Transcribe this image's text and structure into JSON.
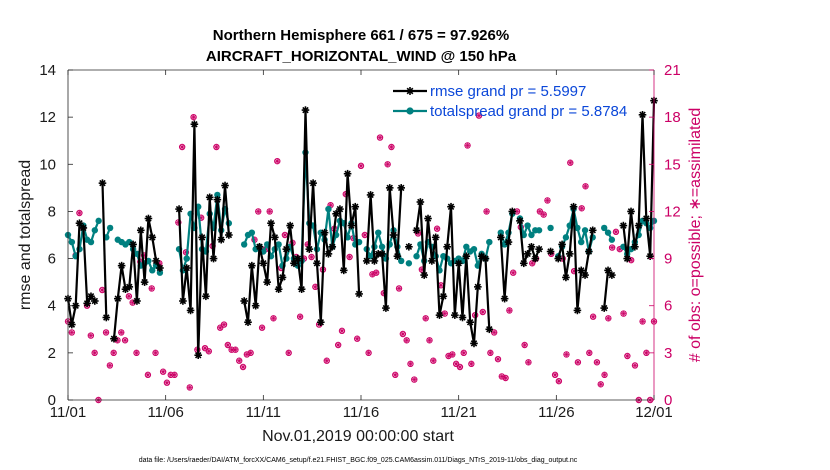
{
  "colors": {
    "rmse": "#000000",
    "spread": "#008080",
    "obs": "#cc0066",
    "legend_text": "#0b47d9"
  },
  "chart_data": {
    "type": "line",
    "title": "Northern Hemisphere 661 / 675 = 97.926%",
    "subtitle": "AIRCRAFT_HORIZONTAL_WIND @ 150 hPa",
    "xlabel": "Nov.01,2019 00:00:00 start",
    "ylabel": "rmse and totalspread",
    "ylabel_right": "# of obs: o=possible; ∗=assimilated",
    "footnote": "data file: /Users/raeder/DAI/ATM_forcXX/CAM6_setup/f.e21.FHIST_BGC.f09_025.CAM6assim.011/Diags_NTrS_2019-11/obs_diag_output.nc",
    "xlim": [
      0,
      30
    ],
    "ylim": [
      0,
      14
    ],
    "ylim_right": [
      0,
      21
    ],
    "x_ticks": [
      0,
      5,
      10,
      15,
      20,
      25,
      30
    ],
    "x_tick_labels": [
      "11/01",
      "11/06",
      "11/11",
      "11/16",
      "11/21",
      "11/26",
      "12/01"
    ],
    "y_ticks": [
      0,
      2,
      4,
      6,
      8,
      10,
      12,
      14
    ],
    "y_tick_labels": [
      "0",
      "2",
      "4",
      "6",
      "8",
      "10",
      "12",
      "14"
    ],
    "y_ticks_right": [
      0,
      3,
      6,
      9,
      12,
      15,
      18,
      21
    ],
    "y_tick_labels_right": [
      "0",
      "3",
      "6",
      "9",
      "12",
      "15",
      "18",
      "21"
    ],
    "legend_position": "top-right",
    "series": [
      {
        "name": "rmse grand pr = 5.5997",
        "values": [
          4.3,
          3.2,
          4.0,
          7.5,
          7.3,
          4.1,
          4.4,
          4.2,
          null,
          9.2,
          3.5,
          null,
          2.6,
          4.3,
          5.7,
          4.7,
          4.8,
          6.6,
          4.2,
          7.2,
          5.0,
          7.7,
          6.9,
          5.9,
          5.6,
          null,
          null,
          null,
          null,
          8.1,
          4.2,
          5.6,
          3.8,
          11.7,
          1.9,
          6.9,
          4.4,
          8.6,
          6.0,
          8.5,
          6.8,
          9.1,
          7.0,
          null,
          null,
          null,
          4.2,
          3.3,
          5.7,
          4.0,
          6.5,
          5.8,
          5.0,
          7.5,
          6.9,
          4.7,
          5.2,
          6.4,
          7.4,
          5.8,
          6.0,
          4.7,
          12.3,
          6.4,
          9.2,
          5.8,
          3.3,
          7.1,
          6.2,
          6.5,
          7.9,
          8.1,
          5.5,
          9.6,
          7.4,
          8.2,
          4.5,
          null,
          5.9,
          8.7,
          5.9,
          6.2,
          6.2,
          3.9,
          9.0,
          7.0,
          6.1,
          9.0,
          null,
          6.5,
          null,
          7.2,
          8.4,
          5.3,
          7.7,
          5.9,
          6.9,
          3.6,
          4.4,
          6.5,
          8.2,
          3.6,
          5.8,
          3.5,
          6.1,
          3.3,
          2.4,
          4.8,
          6.1,
          6.0,
          3.0,
          null,
          null,
          6.9,
          4.3,
          6.7,
          8.0,
          null,
          7.6,
          5.8,
          6.2,
          6.5,
          6.0,
          6.4,
          null,
          null,
          6.3,
          null,
          6.0,
          6.6,
          5.2,
          6.2,
          8.2,
          3.8,
          5.5,
          5.3,
          6.3,
          7.2,
          null,
          null,
          3.9,
          5.5,
          5.3,
          null,
          null,
          7.4,
          6.0,
          8.0,
          6.5,
          7.4,
          12.1,
          7.7,
          6.1,
          12.7
        ],
        "marker": "asterisk"
      },
      {
        "name": "totalspread grand pr = 5.8784",
        "values": [
          7.0,
          6.7,
          6.1,
          6.4,
          7.4,
          6.8,
          6.7,
          7.2,
          7.6,
          null,
          6.9,
          7.3,
          null,
          6.8,
          6.7,
          6.6,
          6.7,
          6.4,
          6.2,
          5.7,
          5.8,
          5.9,
          5.5,
          5.7,
          5.4,
          null,
          null,
          null,
          null,
          6.4,
          5.5,
          6.0,
          7.9,
          7.3,
          8.2,
          6.4,
          6.3,
          7.9,
          7.3,
          8.7,
          7.2,
          8.1,
          7.5,
          null,
          null,
          null,
          6.6,
          7.0,
          7.1,
          6.4,
          6.5,
          6.3,
          6.6,
          6.1,
          6.4,
          6.6,
          5.7,
          6.0,
          6.5,
          6.0,
          5.7,
          5.9,
          10.5,
          7.5,
          7.4,
          6.4,
          7.1,
          6.8,
          8.1,
          6.5,
          7.0,
          7.6,
          7.5,
          6.9,
          7.5,
          6.6,
          6.7,
          null,
          6.4,
          6.1,
          6.5,
          7.1,
          6.5,
          6.0,
          6.6,
          7.2,
          6.5,
          5.9,
          null,
          5.8,
          null,
          6.1,
          6.6,
          5.9,
          6.7,
          6.5,
          6.1,
          5.5,
          6.1,
          6.0,
          5.8,
          5.9,
          6.0,
          5.9,
          6.5,
          6.3,
          6.4,
          5.7,
          6.2,
          6.0,
          6.7,
          null,
          null,
          7.1,
          6.6,
          7.1,
          7.9,
          null,
          7.7,
          7.0,
          7.4,
          7.0,
          7.2,
          7.2,
          null,
          null,
          7.3,
          null,
          6.1,
          6.5,
          6.9,
          7.4,
          8.1,
          7.3,
          6.7,
          7.2,
          6.3,
          6.9,
          null,
          null,
          7.3,
          7.1,
          6.8,
          null,
          null,
          6.5,
          6.2,
          6.4,
          6.7,
          7.0,
          7.6,
          7.5,
          7.3,
          7.6
        ],
        "marker": "filled-circle"
      }
    ],
    "obs_possible": [
      5.0,
      4.3,
      9.2,
      11.9,
      11.0,
      6.0,
      4.1,
      3.0,
      0.0,
      7.0,
      4.3,
      2.2,
      3.0,
      3.8,
      4.3,
      3.8,
      6.6,
      6.2,
      3.0,
      8.8,
      9.2,
      1.6,
      7.1,
      3.0,
      8.7,
      1.8,
      1.1,
      1.6,
      1.6,
      11.3,
      16.1,
      9.4,
      0.8,
      18.0,
      3.2,
      11.6,
      3.3,
      3.1,
      9.8,
      16.1,
      4.6,
      4.8,
      3.5,
      3.2,
      3.2,
      2.5,
      2.1,
      2.9,
      3.0,
      10.2,
      12.0,
      4.6,
      9.6,
      12.0,
      5.2,
      15.2,
      8.4,
      10.5,
      3.0,
      10.0,
      9.1,
      5.3,
      9.0,
      9.9,
      9.1,
      7.2,
      4.8,
      8.3,
      2.5,
      12.4,
      10.9,
      3.5,
      4.4,
      13.1,
      9.1,
      10.3,
      3.9,
      14.9,
      10.5,
      3.0,
      8.0,
      8.1,
      16.7,
      6.8,
      15.0,
      16.1,
      1.6,
      7.1,
      4.2,
      3.8,
      2.3,
      1.3,
      10.6,
      8.3,
      5.2,
      3.8,
      2.5,
      10.9,
      7.3,
      5.5,
      2.8,
      2.9,
      2.3,
      2.1,
      3.0,
      16.2,
      2.3,
      5.4,
      18.1,
      5.6,
      12.0,
      3.0,
      4.3,
      2.6,
      1.5,
      1.4,
      5.7,
      8.1,
      12.0,
      11.0,
      3.5,
      2.4,
      8.7,
      9.0,
      12.0,
      11.8,
      12.7,
      9.3,
      1.6,
      1.2,
      9.0,
      2.9,
      15.1,
      8.2,
      2.4,
      12.2,
      13.6,
      3.0,
      5.3,
      2.4,
      1.0,
      1.6,
      5.2,
      9.7,
      10.7,
      9.6,
      5.5,
      2.8,
      8.9,
      2.2,
      0.0,
      5.0,
      3.0,
      0.0,
      5.0
    ]
  }
}
